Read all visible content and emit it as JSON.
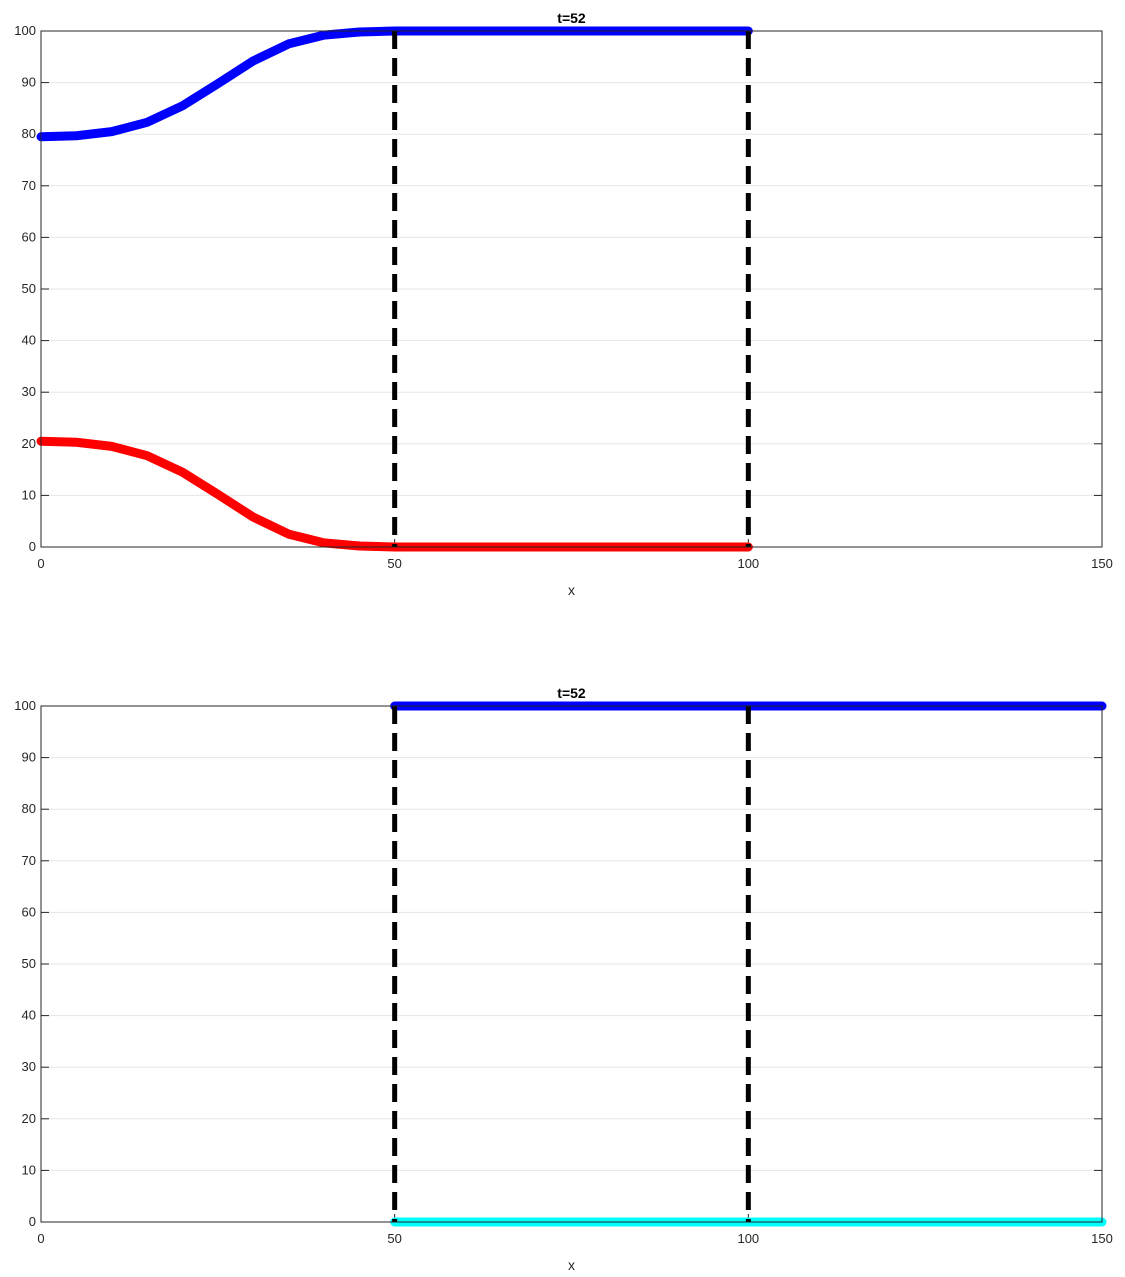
{
  "chart_data": [
    {
      "type": "line",
      "title": "t=52",
      "xlabel": "x",
      "ylabel": "",
      "xlim": [
        0,
        150
      ],
      "ylim": [
        0,
        100
      ],
      "xticks": [
        0,
        50,
        100,
        150
      ],
      "yticks": [
        0,
        10,
        20,
        30,
        40,
        50,
        60,
        70,
        80,
        90,
        100
      ],
      "grid": "horizontal",
      "series": [
        {
          "color": "#0000ff",
          "x": [
            0,
            5,
            10,
            15,
            20,
            25,
            30,
            35,
            40,
            45,
            50,
            55,
            60,
            70,
            80,
            90,
            100
          ],
          "y": [
            79.5,
            79.7,
            80.5,
            82.3,
            85.5,
            89.8,
            94.2,
            97.5,
            99.2,
            99.8,
            100,
            100,
            100,
            100,
            100,
            100,
            100
          ]
        },
        {
          "color": "#ff0000",
          "x": [
            0,
            5,
            10,
            15,
            20,
            25,
            30,
            35,
            40,
            45,
            50,
            55,
            60,
            70,
            80,
            90,
            100
          ],
          "y": [
            20.5,
            20.3,
            19.5,
            17.7,
            14.5,
            10.2,
            5.8,
            2.5,
            0.8,
            0.2,
            0,
            0,
            0,
            0,
            0,
            0,
            0
          ]
        }
      ],
      "vlines": [
        50,
        100
      ],
      "vline_color": "#000000"
    },
    {
      "type": "line",
      "title": "t=52",
      "xlabel": "x",
      "ylabel": "",
      "xlim": [
        0,
        150
      ],
      "ylim": [
        0,
        100
      ],
      "xticks": [
        0,
        50,
        100,
        150
      ],
      "yticks": [
        0,
        10,
        20,
        30,
        40,
        50,
        60,
        70,
        80,
        90,
        100
      ],
      "grid": "horizontal",
      "series": [
        {
          "color": "#0000ff",
          "x": [
            50,
            75,
            100,
            125,
            150
          ],
          "y": [
            100,
            100,
            100,
            100,
            100
          ]
        },
        {
          "color": "#00ffff",
          "x": [
            50,
            75,
            100,
            125,
            150
          ],
          "y": [
            0,
            0,
            0,
            0,
            0
          ]
        }
      ],
      "vlines": [
        50,
        100
      ],
      "vline_color": "#000000"
    }
  ]
}
